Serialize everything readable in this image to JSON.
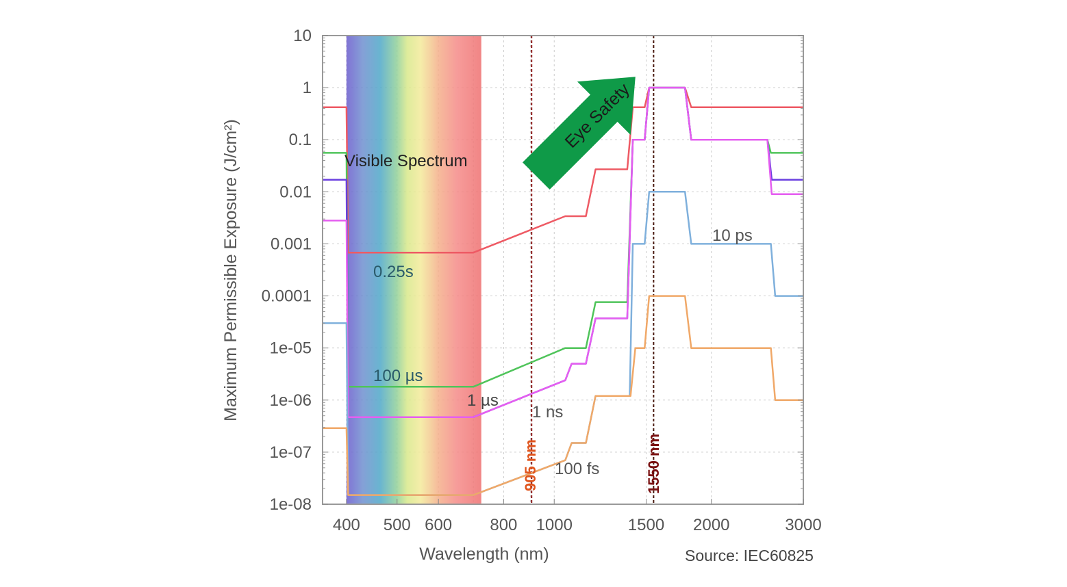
{
  "chart_data": {
    "type": "line",
    "title": "",
    "xlabel": "Wavelength (nm)",
    "ylabel": "Maximum Permissible Exposure (J/cm²)",
    "x_scale": "log",
    "y_scale": "log",
    "xlim": [
      360,
      3000
    ],
    "ylim": [
      1e-08,
      10
    ],
    "grid": true,
    "x_ticks": [
      "400",
      "500",
      "600",
      "800",
      "1000",
      "1500",
      "2000",
      "3000"
    ],
    "x_tick_values": [
      400,
      500,
      600,
      800,
      1000,
      1500,
      2000,
      3000
    ],
    "y_ticks": [
      "10",
      "1",
      "0.1",
      "0.01",
      "0.001",
      "0.0001",
      "1e-05",
      "1e-06",
      "1e-07",
      "1e-08"
    ],
    "y_tick_values": [
      10,
      1,
      0.1,
      0.01,
      0.001,
      0.0001,
      1e-05,
      1e-06,
      1e-07,
      1e-08
    ],
    "source": "Source: IEC60825",
    "visible_band": {
      "label": "Visible Spectrum",
      "from": 400,
      "to": 725
    },
    "arrow_label": "Eye Safety",
    "arrow_color": "#0f9a48",
    "markers": [
      {
        "label": "905 nm",
        "x": 905,
        "color": "#e0541c",
        "line_color": "#8b1a1a"
      },
      {
        "label": "1550 nm",
        "x": 1550,
        "color": "#7a1010",
        "line_color": "#4a1a10"
      }
    ],
    "series": [
      {
        "name": "0.25s",
        "color": "#ee5a64",
        "x": [
          360,
          400,
          403,
          700,
          1050,
          1150,
          1200,
          1380,
          1414,
          1490,
          1520,
          1780,
          1830,
          3000
        ],
        "y": [
          0.42,
          0.42,
          0.00068,
          0.00068,
          0.0034,
          0.0034,
          0.027,
          0.027,
          0.42,
          0.42,
          1.0,
          1.0,
          0.42,
          0.42
        ]
      },
      {
        "name": "100 µs",
        "color": "#4fc45a",
        "x": [
          360,
          400,
          403,
          700,
          1050,
          1150,
          1200,
          1380,
          1414,
          1490,
          1520,
          1780,
          1830,
          2560,
          2600,
          3000
        ],
        "y": [
          0.056,
          0.056,
          1.8e-06,
          1.8e-06,
          1e-05,
          1e-05,
          7.6e-05,
          7.6e-05,
          0.1,
          0.1,
          1.0,
          1.0,
          0.1,
          0.1,
          0.056,
          0.056
        ]
      },
      {
        "name": "1 µs",
        "color": "#6a3fe0",
        "x": [
          360,
          400,
          403,
          700,
          1050,
          1080,
          1150,
          1200,
          1380,
          1414,
          1490,
          1520,
          1780,
          1830,
          2560,
          2610,
          3000
        ],
        "y": [
          0.017,
          0.017,
          4.7e-07,
          4.7e-07,
          2.4e-06,
          5e-06,
          5e-06,
          3.7e-05,
          3.7e-05,
          0.1,
          0.1,
          1.0,
          1.0,
          0.1,
          0.1,
          0.017,
          0.017
        ]
      },
      {
        "name": "1 ns",
        "color": "#e55ef0",
        "x": [
          360,
          400,
          403,
          700,
          1050,
          1080,
          1150,
          1200,
          1380,
          1414,
          1490,
          1520,
          1780,
          1830,
          2560,
          2610,
          3000
        ],
        "y": [
          0.0028,
          0.0028,
          4.7e-07,
          4.7e-07,
          2.4e-06,
          5e-06,
          5e-06,
          3.7e-05,
          3.7e-05,
          0.1,
          0.1,
          1.0,
          1.0,
          0.1,
          0.1,
          0.009,
          0.009
        ]
      },
      {
        "name": "10 ps",
        "color": "#7fb0dc",
        "x": [
          360,
          400,
          403,
          700,
          1050,
          1080,
          1150,
          1200,
          1395,
          1414,
          1490,
          1520,
          1780,
          1830,
          2600,
          2650,
          3000
        ],
        "y": [
          3e-05,
          3e-05,
          1.5e-08,
          1.5e-08,
          7e-08,
          1.5e-07,
          1.5e-07,
          1.2e-06,
          1.2e-06,
          0.001,
          0.001,
          0.01,
          0.01,
          0.001,
          0.001,
          0.0001,
          0.0001
        ]
      },
      {
        "name": "100 fs",
        "color": "#f0a868",
        "x": [
          360,
          400,
          403,
          700,
          1050,
          1080,
          1150,
          1200,
          1400,
          1430,
          1490,
          1520,
          1780,
          1830,
          2600,
          2650,
          3000
        ],
        "y": [
          2.9e-07,
          2.9e-07,
          1.5e-08,
          1.5e-08,
          7e-08,
          1.5e-07,
          1.5e-07,
          1.2e-06,
          1.2e-06,
          1e-05,
          1e-05,
          0.0001,
          0.0001,
          1e-05,
          1e-05,
          1e-06,
          1e-06
        ]
      }
    ]
  }
}
